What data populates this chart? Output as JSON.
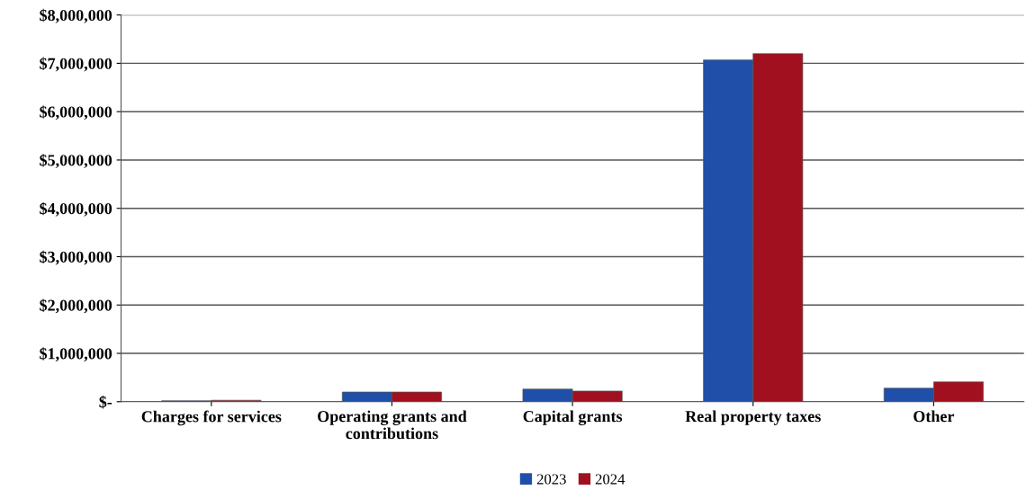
{
  "chart_data": {
    "type": "bar",
    "categories": [
      "Charges for services",
      "Operating grants and\ncontributions",
      "Capital grants",
      "Real property taxes",
      "Other"
    ],
    "series": [
      {
        "name": "2023",
        "color": "#1f4fa8",
        "values": [
          20000,
          200000,
          260000,
          7070000,
          280000
        ]
      },
      {
        "name": "2024",
        "color": "#a0101e",
        "values": [
          30000,
          200000,
          220000,
          7200000,
          410000
        ]
      }
    ],
    "ylim": [
      0,
      8000000
    ],
    "yticks": [
      {
        "value": 0,
        "label": "$-"
      },
      {
        "value": 1000000,
        "label": "$1,000,000"
      },
      {
        "value": 2000000,
        "label": "$2,000,000"
      },
      {
        "value": 3000000,
        "label": "$3,000,000"
      },
      {
        "value": 4000000,
        "label": "$4,000,000"
      },
      {
        "value": 5000000,
        "label": "$5,000,000"
      },
      {
        "value": 6000000,
        "label": "$6,000,000"
      },
      {
        "value": 7000000,
        "label": "$7,000,000"
      },
      {
        "value": 8000000,
        "label": "$8,000,000"
      }
    ],
    "grid": "y",
    "legend": "bottom"
  }
}
